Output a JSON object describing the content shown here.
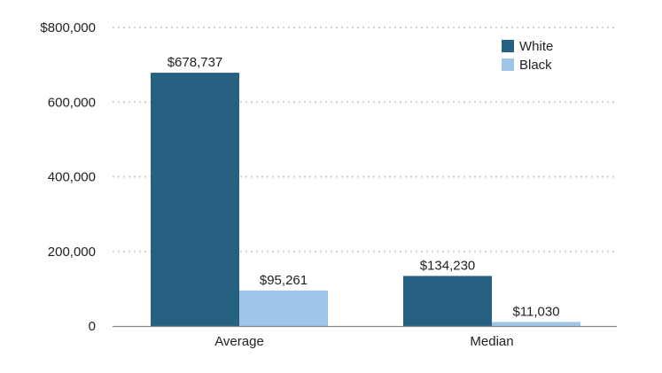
{
  "chart_data": {
    "type": "bar",
    "categories": [
      "Average",
      "Median"
    ],
    "series": [
      {
        "name": "White",
        "color": "#276182",
        "values": [
          678737,
          134230
        ],
        "value_labels": [
          "$678,737",
          "$134,230"
        ]
      },
      {
        "name": "Black",
        "color": "#9fc5e8",
        "values": [
          95261,
          11030
        ],
        "value_labels": [
          "$95,261",
          "$11,030"
        ]
      }
    ],
    "ylim": [
      0,
      800000
    ],
    "yticks": [
      0,
      200000,
      400000,
      600000,
      800000
    ],
    "ytick_labels": [
      "0",
      "200,000",
      "400,000",
      "600,000",
      "$800,000"
    ],
    "grid": true,
    "legend_position": "top-right",
    "title": "",
    "xlabel": "",
    "ylabel": ""
  }
}
